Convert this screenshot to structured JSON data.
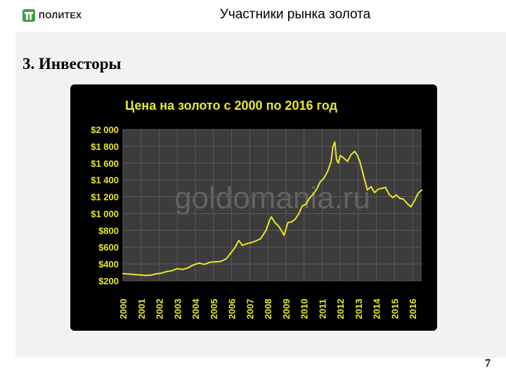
{
  "header": {
    "logo_text": "ПОЛИТЕХ",
    "title": "Участники рынка золота"
  },
  "section": {
    "heading": "3. Инвесторы"
  },
  "page_number": "7",
  "colors": {
    "line": "#e8e82a",
    "title": "#e8e82a",
    "tick_label": "#e8e82a",
    "plot_bg": "#3c3c3c",
    "grid": "#5a5a5a",
    "logo": "#43a047"
  },
  "chart_data": {
    "type": "line",
    "title": "Цена на золото с 2000 по 2016 год",
    "watermark": "goldomania.ru",
    "xlabel": "",
    "ylabel": "",
    "x_categories": [
      "2000",
      "2001",
      "2002",
      "2003",
      "2004",
      "2005",
      "2006",
      "2007",
      "2008",
      "2009",
      "2010",
      "2011",
      "2012",
      "2013",
      "2014",
      "2015",
      "2016"
    ],
    "y_ticks": [
      {
        "value": 200,
        "label": "$200"
      },
      {
        "value": 400,
        "label": "$400"
      },
      {
        "value": 600,
        "label": "$600"
      },
      {
        "value": 800,
        "label": "$800"
      },
      {
        "value": 1000,
        "label": "$1 000"
      },
      {
        "value": 1200,
        "label": "$1 200"
      },
      {
        "value": 1400,
        "label": "$1 400"
      },
      {
        "value": 1600,
        "label": "$1 600"
      },
      {
        "value": 1800,
        "label": "$1 800"
      },
      {
        "value": 2000,
        "label": "$2 000"
      }
    ],
    "ylim": [
      200,
      2000
    ],
    "xlim": [
      2000,
      2016.5
    ],
    "grid": true,
    "legend": "none",
    "series": [
      {
        "x": [
          2000.0,
          2000.3,
          2000.6,
          2000.9,
          2001.2,
          2001.5,
          2001.8,
          2002.1,
          2002.4,
          2002.7,
          2003.0,
          2003.3,
          2003.6,
          2003.9,
          2004.2,
          2004.5,
          2004.8,
          2005.1,
          2005.4,
          2005.7,
          2006.0,
          2006.2,
          2006.4,
          2006.6,
          2006.8,
          2007.0,
          2007.3,
          2007.6,
          2007.9,
          2008.1,
          2008.2,
          2008.4,
          2008.6,
          2008.8,
          2008.9,
          2009.1,
          2009.3,
          2009.5,
          2009.7,
          2009.9,
          2010.1,
          2010.3,
          2010.5,
          2010.7,
          2010.9,
          2011.1,
          2011.3,
          2011.5,
          2011.6,
          2011.7,
          2011.8,
          2011.9,
          2012.0,
          2012.2,
          2012.4,
          2012.6,
          2012.8,
          2012.95,
          2013.1,
          2013.3,
          2013.5,
          2013.7,
          2013.9,
          2014.1,
          2014.3,
          2014.5,
          2014.7,
          2014.9,
          2015.1,
          2015.3,
          2015.5,
          2015.7,
          2015.9,
          2016.1,
          2016.3,
          2016.5
        ],
        "y": [
          285,
          280,
          275,
          270,
          265,
          265,
          280,
          290,
          310,
          320,
          345,
          335,
          355,
          390,
          410,
          395,
          420,
          425,
          430,
          460,
          540,
          600,
          680,
          620,
          640,
          650,
          670,
          700,
          800,
          920,
          960,
          890,
          850,
          780,
          740,
          890,
          900,
          930,
          990,
          1090,
          1110,
          1180,
          1230,
          1290,
          1380,
          1420,
          1500,
          1620,
          1800,
          1850,
          1640,
          1600,
          1690,
          1660,
          1620,
          1700,
          1740,
          1690,
          1610,
          1440,
          1280,
          1320,
          1250,
          1290,
          1300,
          1310,
          1230,
          1190,
          1220,
          1180,
          1170,
          1120,
          1080,
          1150,
          1240,
          1280
        ]
      }
    ]
  }
}
